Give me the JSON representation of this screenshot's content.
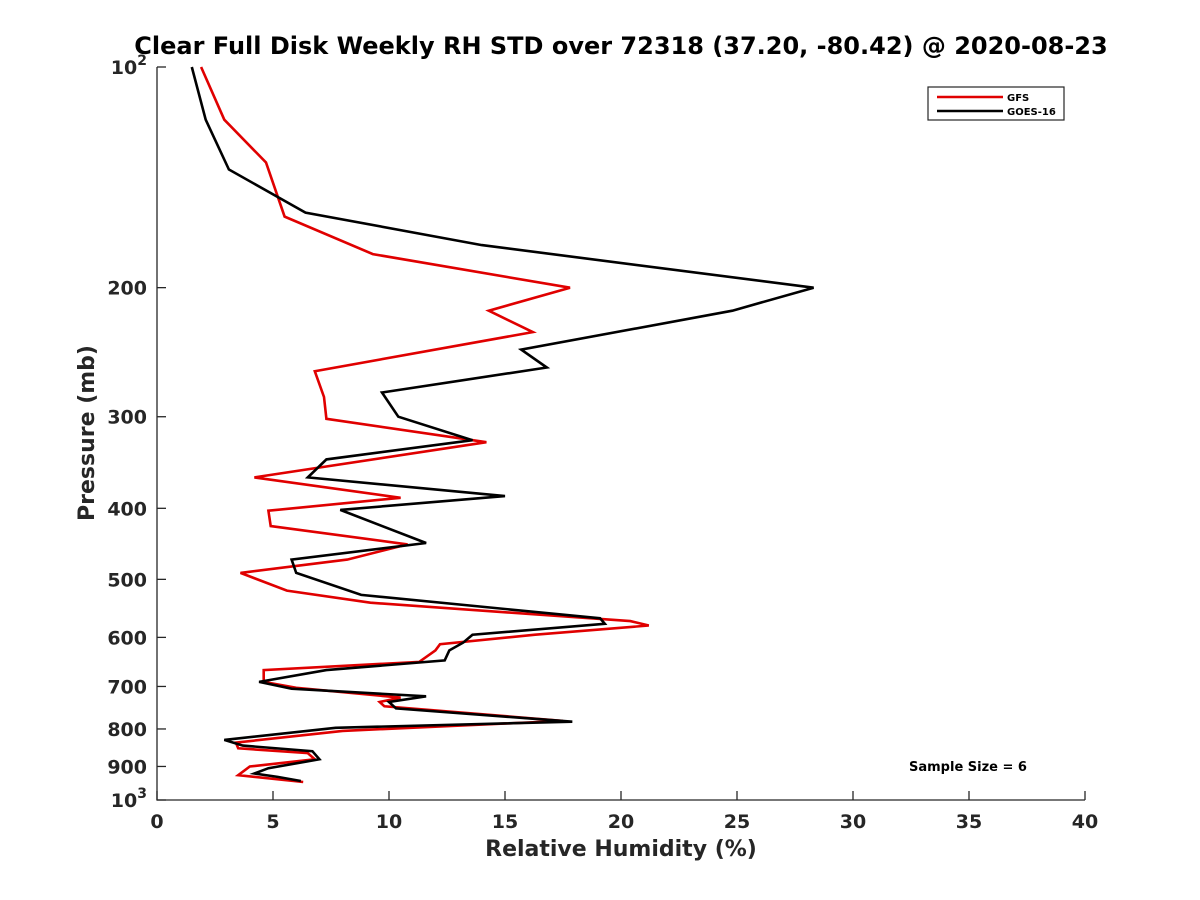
{
  "chart_data": {
    "type": "line",
    "title": "Clear Full Disk Weekly RH STD over 72318 (37.20, -80.42) @ 2020-08-23",
    "xlabel": "Relative Humidity (%)",
    "ylabel": "Pressure (mb)",
    "xlim": [
      0,
      40
    ],
    "ylim": [
      100,
      1000
    ],
    "yscale": "log",
    "y_reversed": true,
    "grid": false,
    "legend_position": "top-right",
    "x_ticks": [
      {
        "value": 0,
        "label": "0"
      },
      {
        "value": 5,
        "label": "5"
      },
      {
        "value": 10,
        "label": "10"
      },
      {
        "value": 15,
        "label": "15"
      },
      {
        "value": 20,
        "label": "20"
      },
      {
        "value": 25,
        "label": "25"
      },
      {
        "value": 30,
        "label": "30"
      },
      {
        "value": 35,
        "label": "35"
      },
      {
        "value": 40,
        "label": "40"
      }
    ],
    "y_ticks": [
      {
        "value": 100,
        "label": "",
        "base": "10",
        "exp": "2"
      },
      {
        "value": 200,
        "label": "200"
      },
      {
        "value": 300,
        "label": "300"
      },
      {
        "value": 400,
        "label": "400"
      },
      {
        "value": 500,
        "label": "500"
      },
      {
        "value": 600,
        "label": "600"
      },
      {
        "value": 700,
        "label": "700"
      },
      {
        "value": 800,
        "label": "800"
      },
      {
        "value": 900,
        "label": "900"
      },
      {
        "value": 1000,
        "label": "",
        "base": "10",
        "exp": "3"
      }
    ],
    "annotation": "Sample Size = 6",
    "series": [
      {
        "name": "GFS",
        "color": "#e00000",
        "points": [
          [
            1.9,
            100
          ],
          [
            2.9,
            118
          ],
          [
            4.7,
            135
          ],
          [
            5.5,
            160
          ],
          [
            9.3,
            180
          ],
          [
            17.8,
            200
          ],
          [
            14.3,
            215
          ],
          [
            16.2,
            230
          ],
          [
            6.8,
            260
          ],
          [
            7.2,
            282
          ],
          [
            7.3,
            302
          ],
          [
            14.2,
            325
          ],
          [
            4.2,
            363
          ],
          [
            10.5,
            387
          ],
          [
            4.8,
            403
          ],
          [
            4.9,
            423
          ],
          [
            10.8,
            448
          ],
          [
            8.2,
            470
          ],
          [
            3.6,
            490
          ],
          [
            5.6,
            518
          ],
          [
            9.2,
            538
          ],
          [
            20.4,
            570
          ],
          [
            21.2,
            578
          ],
          [
            16.3,
            595
          ],
          [
            12.2,
            613
          ],
          [
            12.0,
            625
          ],
          [
            11.3,
            648
          ],
          [
            4.6,
            665
          ],
          [
            4.6,
            690
          ],
          [
            6.0,
            703
          ],
          [
            10.5,
            725
          ],
          [
            9.6,
            735
          ],
          [
            9.8,
            745
          ],
          [
            17.5,
            780
          ],
          [
            8.0,
            805
          ],
          [
            3.4,
            835
          ],
          [
            3.5,
            850
          ],
          [
            6.5,
            863
          ],
          [
            6.8,
            880
          ],
          [
            4.0,
            900
          ],
          [
            3.5,
            925
          ],
          [
            6.3,
            945
          ]
        ]
      },
      {
        "name": "GOES-16",
        "color": "#000000",
        "points": [
          [
            1.5,
            100
          ],
          [
            2.1,
            118
          ],
          [
            3.1,
            138
          ],
          [
            6.4,
            158
          ],
          [
            14.0,
            175
          ],
          [
            28.3,
            200
          ],
          [
            24.8,
            215
          ],
          [
            15.7,
            243
          ],
          [
            16.8,
            257
          ],
          [
            9.7,
            278
          ],
          [
            10.4,
            300
          ],
          [
            13.6,
            323
          ],
          [
            7.3,
            343
          ],
          [
            6.5,
            363
          ],
          [
            15.0,
            385
          ],
          [
            7.9,
            402
          ],
          [
            11.6,
            446
          ],
          [
            5.8,
            470
          ],
          [
            6.0,
            490
          ],
          [
            8.8,
            525
          ],
          [
            19.1,
            565
          ],
          [
            19.3,
            575
          ],
          [
            13.6,
            595
          ],
          [
            13.2,
            610
          ],
          [
            12.6,
            625
          ],
          [
            12.4,
            645
          ],
          [
            7.3,
            665
          ],
          [
            4.4,
            690
          ],
          [
            5.8,
            705
          ],
          [
            11.6,
            722
          ],
          [
            10.0,
            735
          ],
          [
            10.3,
            750
          ],
          [
            17.9,
            782
          ],
          [
            7.7,
            797
          ],
          [
            2.9,
            828
          ],
          [
            3.7,
            843
          ],
          [
            6.7,
            858
          ],
          [
            7.0,
            880
          ],
          [
            4.8,
            905
          ],
          [
            4.2,
            920
          ],
          [
            5.2,
            930
          ],
          [
            6.2,
            942
          ]
        ]
      }
    ]
  }
}
